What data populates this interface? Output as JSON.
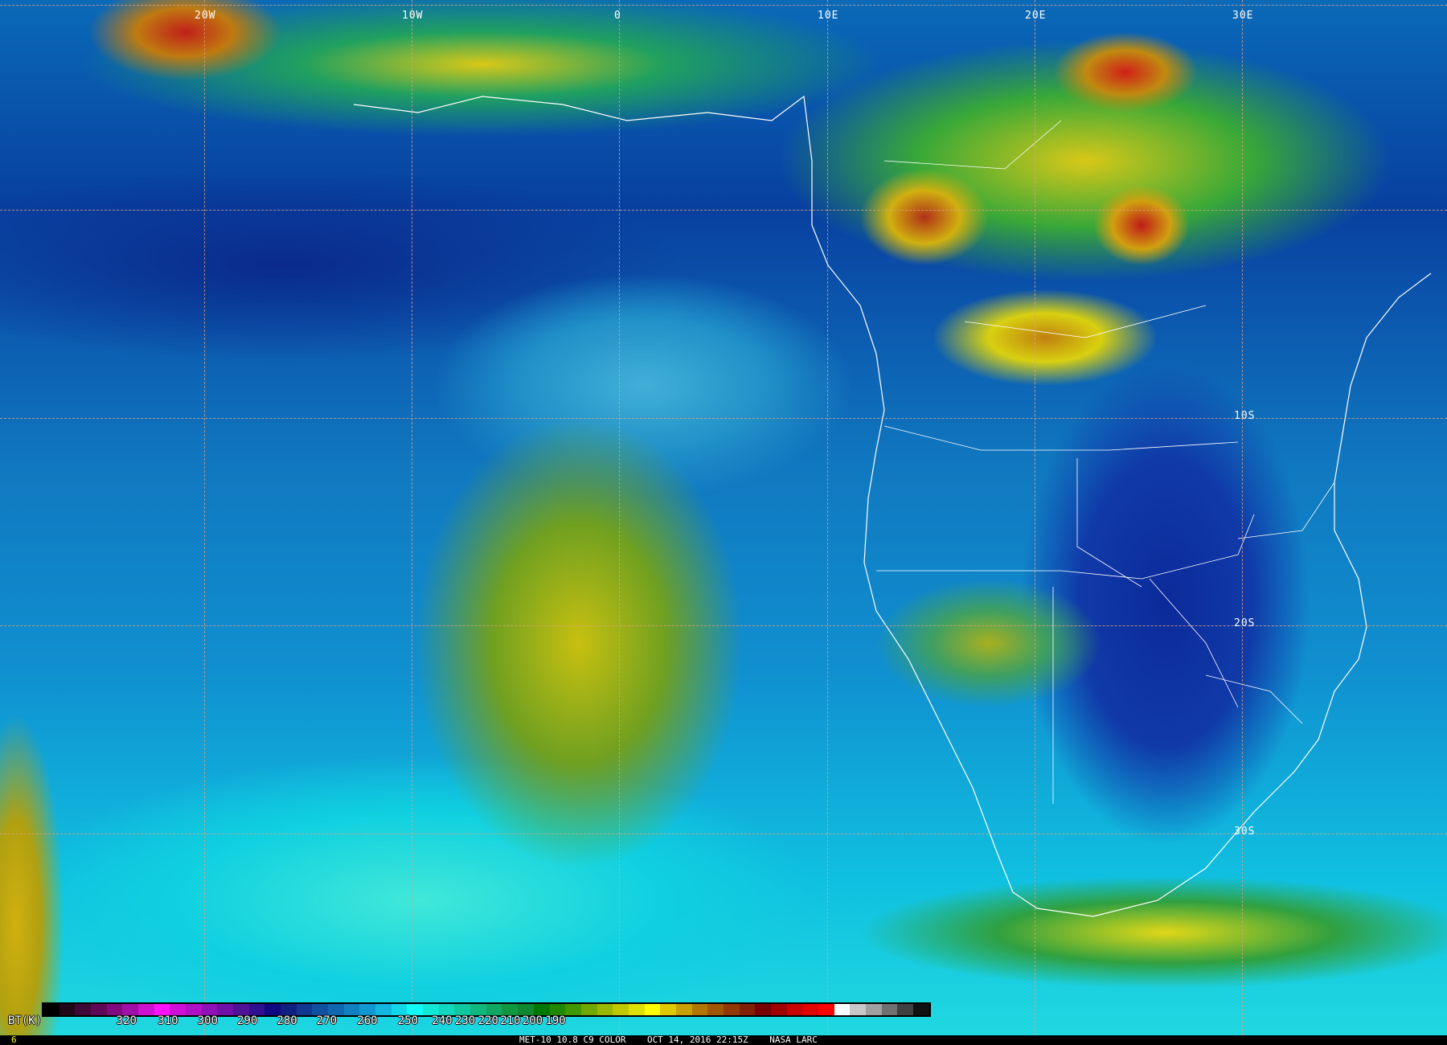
{
  "map": {
    "longitude_labels": [
      "20W",
      "10W",
      "0",
      "10E",
      "20E",
      "30E"
    ],
    "latitude_labels": [
      "10S",
      "20S",
      "30S"
    ],
    "grid_color": "#e0a080",
    "boundary_color": "#ffffff"
  },
  "colorbar": {
    "unit_label": "BT(K)",
    "tick_labels": [
      "320",
      "310",
      "300",
      "290",
      "280",
      "270",
      "260",
      "250",
      "240",
      "230",
      "220",
      "210",
      "200",
      "190"
    ],
    "colors": [
      "#000000",
      "#200818",
      "#400838",
      "#600858",
      "#800880",
      "#a010a8",
      "#d010d0",
      "#ff10ff",
      "#d010d8",
      "#b010c8",
      "#9010b8",
      "#7010a8",
      "#501098",
      "#301090",
      "#100880",
      "#102080",
      "#103890",
      "#1050a0",
      "#1068b0",
      "#1080c0",
      "#1098d0",
      "#10b8e0",
      "#10d8e8",
      "#10f8f8",
      "#10e8d8",
      "#10d8c0",
      "#10c8a0",
      "#10b880",
      "#10a860",
      "#109840",
      "#108830",
      "#007800",
      "#208800",
      "#409800",
      "#70a800",
      "#98b800",
      "#c0c800",
      "#e0e000",
      "#ffff00",
      "#e0c800",
      "#c8a000",
      "#b07800",
      "#a05800",
      "#903800",
      "#802000",
      "#780000",
      "#a00000",
      "#c80000",
      "#e00000",
      "#ff0000",
      "#ffffff",
      "#c8c8c8",
      "#a0a0a0",
      "#707070",
      "#404040",
      "#101010"
    ]
  },
  "footer": {
    "frame_number": "6",
    "caption": "MET-10 10.8 C9 COLOR    OCT 14, 2016 22:15Z    NASA LARC"
  }
}
